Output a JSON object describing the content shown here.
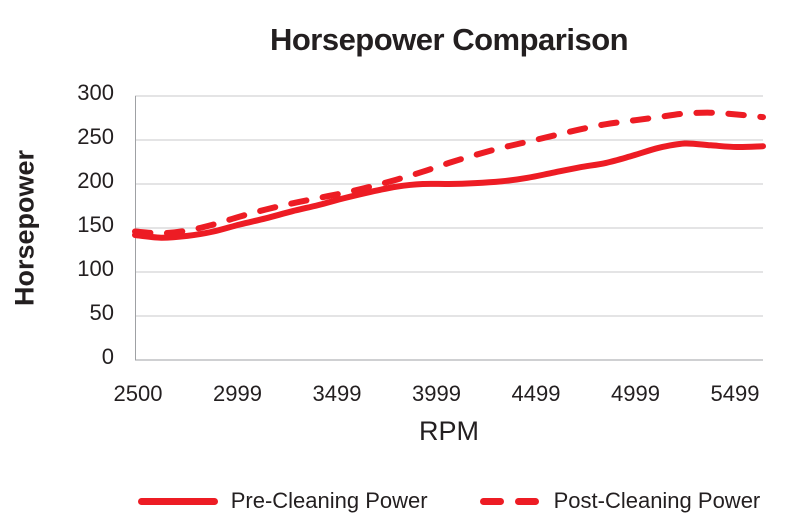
{
  "title": "Horsepower Comparison",
  "y_axis": {
    "title": "Horsepower",
    "tick_labels": [
      "300",
      "250",
      "200",
      "150",
      "100",
      "50",
      "0"
    ]
  },
  "x_axis": {
    "title": "RPM",
    "tick_labels": [
      "2500",
      "2999",
      "3499",
      "3999",
      "4499",
      "4999",
      "5499"
    ]
  },
  "legend": {
    "items": [
      {
        "label": "Pre-Cleaning Power",
        "style": "solid"
      },
      {
        "label": "Post-Cleaning Power",
        "style": "dashed"
      }
    ]
  },
  "colors": {
    "line_red": "#ed1c24",
    "text": "#231f20",
    "grid": "#c8c9cb",
    "axis": "#9fa1a4",
    "background": "#ffffff"
  },
  "chart_data": {
    "type": "line",
    "title": "Horsepower Comparison",
    "xlabel": "RPM",
    "ylabel": "Horsepower",
    "ylim": [
      0,
      300
    ],
    "y_tick_step": 50,
    "x_tick_labels": [
      "2500",
      "2999",
      "3499",
      "3999",
      "4499",
      "4999",
      "5499"
    ],
    "x_range_rpm": [
      2500,
      5499
    ],
    "grid": "horizontal",
    "legend_position": "bottom",
    "series": [
      {
        "name": "Pre-Cleaning Power",
        "style": "solid",
        "color": "#ed1c24",
        "values": [
          142,
          139,
          141,
          146,
          154,
          161,
          169,
          176,
          184,
          191,
          197,
          200,
          200,
          201,
          203,
          207,
          213,
          219,
          224,
          232,
          241,
          246,
          244,
          242,
          243
        ]
      },
      {
        "name": "Post-Cleaning Power",
        "style": "dashed",
        "color": "#ed1c24",
        "values": [
          146,
          144,
          147,
          154,
          163,
          171,
          178,
          184,
          190,
          197,
          205,
          214,
          224,
          233,
          241,
          248,
          255,
          262,
          268,
          272,
          276,
          280,
          281,
          279,
          276
        ]
      }
    ]
  }
}
